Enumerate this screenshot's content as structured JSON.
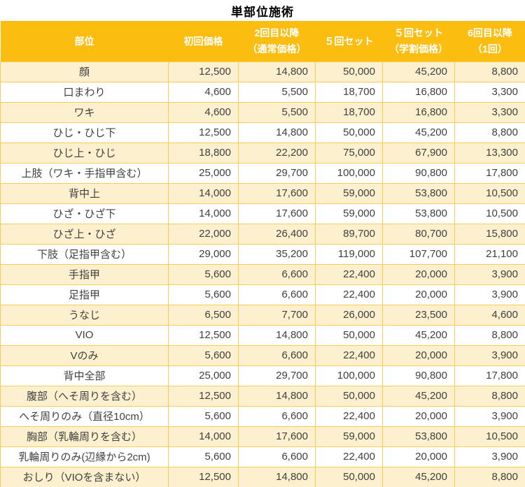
{
  "title": "単部位施術",
  "colors": {
    "header_bg": "#fcbd11",
    "header_text": "#ffffff",
    "row_alt_bg": "#fcf0ce",
    "row_bg": "#ffffff",
    "border": "#facc55",
    "cell_text": "#404040",
    "title_text": "#000000"
  },
  "table": {
    "headers": [
      {
        "label": "部位",
        "sub": ""
      },
      {
        "label": "初回価格",
        "sub": ""
      },
      {
        "label": "2回目以降",
        "sub": "（通常価格）"
      },
      {
        "label": "５回セット",
        "sub": ""
      },
      {
        "label": "５回セット",
        "sub": "（学割価格）"
      },
      {
        "label": "6回目以降",
        "sub": "（1回）"
      }
    ],
    "rows": [
      {
        "part": "顔",
        "prices": [
          "12,500",
          "14,800",
          "50,000",
          "45,200",
          "8,800"
        ]
      },
      {
        "part": "口まわり",
        "prices": [
          "4,600",
          "5,500",
          "18,700",
          "16,800",
          "3,300"
        ]
      },
      {
        "part": "ワキ",
        "prices": [
          "4,600",
          "5,500",
          "18,700",
          "16,800",
          "3,300"
        ]
      },
      {
        "part": "ひじ・ひじ下",
        "prices": [
          "12,500",
          "14,800",
          "50,000",
          "45,200",
          "8,800"
        ]
      },
      {
        "part": "ひじ上・ひじ",
        "prices": [
          "18,800",
          "22,200",
          "75,000",
          "67,900",
          "13,300"
        ]
      },
      {
        "part": "上肢（ワキ・手指甲含む）",
        "prices": [
          "25,000",
          "29,700",
          "100,000",
          "90,800",
          "17,800"
        ]
      },
      {
        "part": "背中上",
        "prices": [
          "14,000",
          "17,600",
          "59,000",
          "53,800",
          "10,500"
        ]
      },
      {
        "part": "ひざ・ひざ下",
        "prices": [
          "14,000",
          "17,600",
          "59,000",
          "53,800",
          "10,500"
        ]
      },
      {
        "part": "ひざ上・ひざ",
        "prices": [
          "22,000",
          "26,400",
          "89,700",
          "80,700",
          "15,800"
        ]
      },
      {
        "part": "下肢（足指甲含む）",
        "prices": [
          "29,000",
          "35,200",
          "119,000",
          "107,700",
          "21,100"
        ]
      },
      {
        "part": "手指甲",
        "prices": [
          "5,600",
          "6,600",
          "22,400",
          "20,000",
          "3,900"
        ]
      },
      {
        "part": "足指甲",
        "prices": [
          "5,600",
          "6,600",
          "22,400",
          "20,000",
          "3,900"
        ]
      },
      {
        "part": "うなじ",
        "prices": [
          "6,500",
          "7,700",
          "26,000",
          "23,500",
          "4,600"
        ]
      },
      {
        "part": "VIO",
        "prices": [
          "12,500",
          "14,800",
          "50,000",
          "45,200",
          "8,800"
        ]
      },
      {
        "part": "Vのみ",
        "prices": [
          "5,600",
          "6,600",
          "22,400",
          "20,000",
          "3,900"
        ]
      },
      {
        "part": "背中全部",
        "prices": [
          "25,000",
          "29,700",
          "100,000",
          "90,800",
          "17,800"
        ]
      },
      {
        "part": "腹部（へそ周りを含む）",
        "prices": [
          "12,500",
          "14,800",
          "50,000",
          "45,200",
          "8,800"
        ]
      },
      {
        "part": "へそ周りのみ（直径10cm）",
        "prices": [
          "5,600",
          "6,600",
          "22,400",
          "20,000",
          "3,900"
        ]
      },
      {
        "part": "胸部（乳輪周りを含む）",
        "prices": [
          "14,000",
          "17,600",
          "59,000",
          "53,800",
          "10,500"
        ]
      },
      {
        "part": "乳輪周りのみ(辺縁から2cm)",
        "prices": [
          "5,600",
          "6,600",
          "22,400",
          "20,000",
          "3,900"
        ]
      },
      {
        "part": "おしり（VIOを含まない）",
        "prices": [
          "12,500",
          "14,800",
          "50,000",
          "45,200",
          "8,800"
        ]
      }
    ]
  }
}
